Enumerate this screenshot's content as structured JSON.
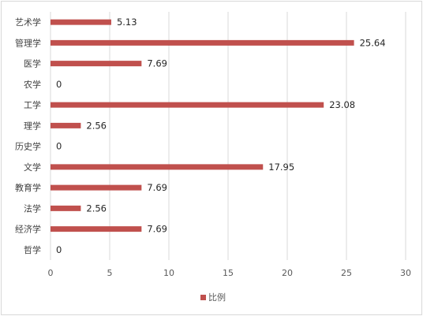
{
  "chart_data": {
    "type": "bar",
    "orientation": "horizontal",
    "categories": [
      "艺术学",
      "管理学",
      "医学",
      "农学",
      "工学",
      "理学",
      "历史学",
      "文学",
      "教育学",
      "法学",
      "经济学",
      "哲学"
    ],
    "series": [
      {
        "name": "比例",
        "values": [
          5.13,
          25.64,
          7.69,
          0,
          23.08,
          2.56,
          0,
          17.95,
          7.69,
          2.56,
          7.69,
          0
        ],
        "data_labels": [
          "5.13",
          "25.64",
          "7.69",
          "0",
          "23.08",
          "2.56",
          "0",
          "17.95",
          "7.69",
          "2.56",
          "7.69",
          "0"
        ]
      }
    ],
    "xlim": [
      0,
      30
    ],
    "x_ticks": [
      0,
      5,
      10,
      15,
      20,
      25,
      30
    ],
    "x_tick_labels": [
      "0",
      "5",
      "10",
      "15",
      "20",
      "25",
      "30"
    ],
    "grid": "vertical",
    "legend_position": "bottom",
    "colors": {
      "bar": "#c0504d"
    }
  }
}
